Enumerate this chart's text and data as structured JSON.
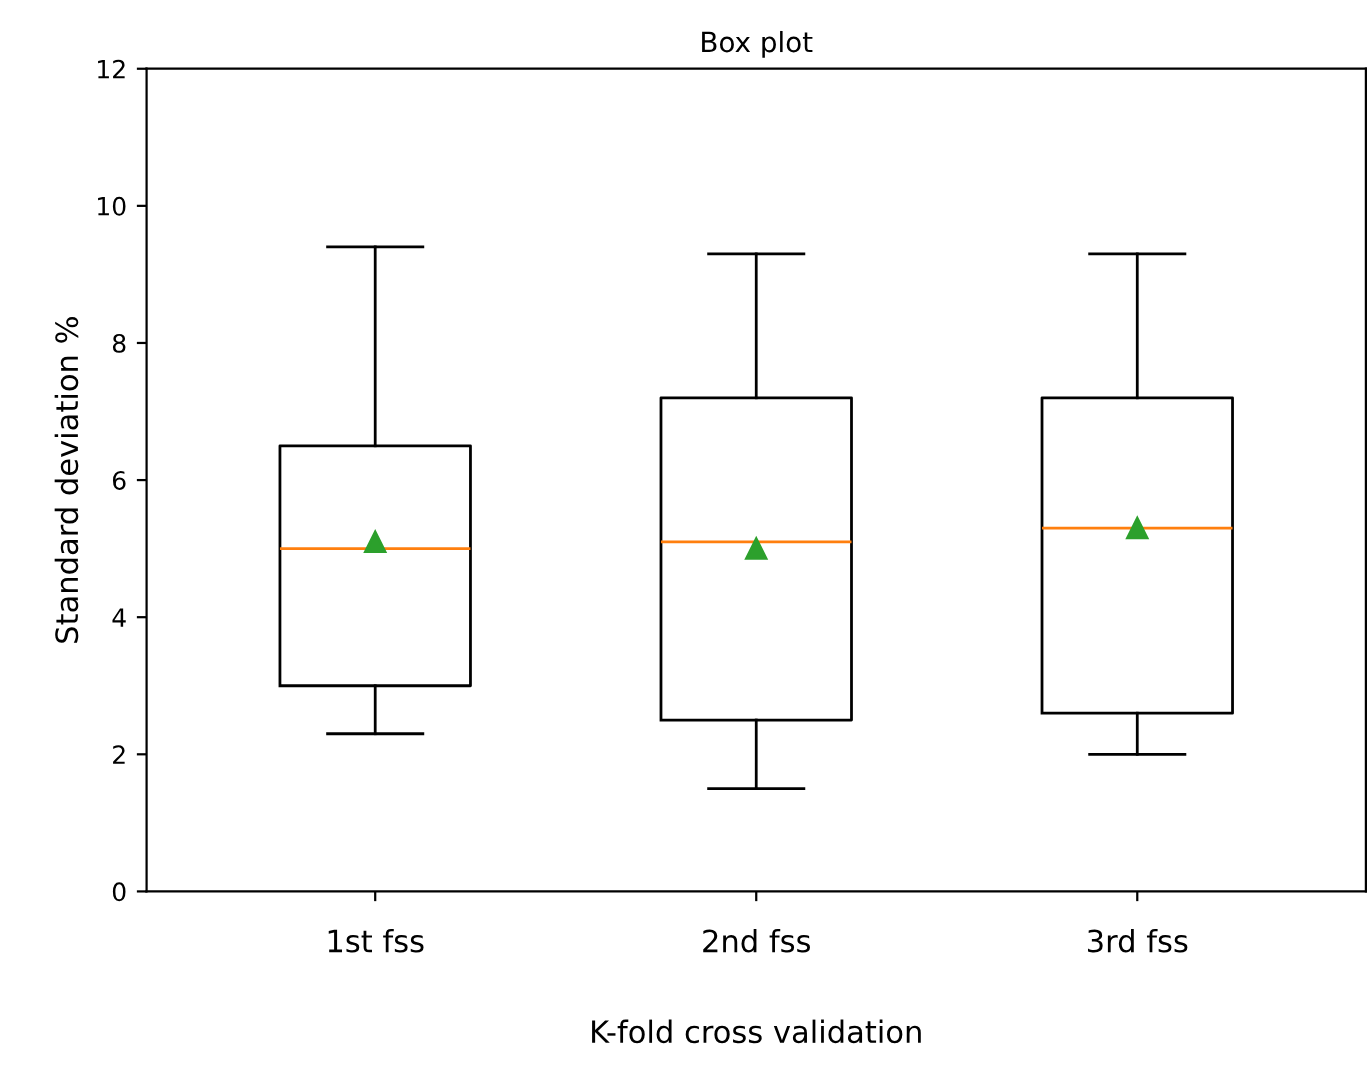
{
  "chart_data": {
    "type": "box",
    "title": "Box plot",
    "xlabel": "K-fold cross validation",
    "ylabel": "Standard deviation %",
    "categories": [
      "1st fss",
      "2nd fss",
      "3rd fss"
    ],
    "boxes": [
      {
        "low": 2.3,
        "q1": 3.0,
        "median": 5.0,
        "q3": 6.5,
        "high": 9.4,
        "mean": 5.1
      },
      {
        "low": 1.5,
        "q1": 2.5,
        "median": 5.1,
        "q3": 7.2,
        "high": 9.3,
        "mean": 5.0
      },
      {
        "low": 2.0,
        "q1": 2.6,
        "median": 5.3,
        "q3": 7.2,
        "high": 9.3,
        "mean": 5.3
      }
    ],
    "color": "#000000",
    "marker": "triangle",
    "ylim": [
      0,
      12
    ],
    "yticks": [
      0,
      2,
      4,
      6,
      8,
      10,
      12
    ],
    "grid": false,
    "legend": false
  }
}
